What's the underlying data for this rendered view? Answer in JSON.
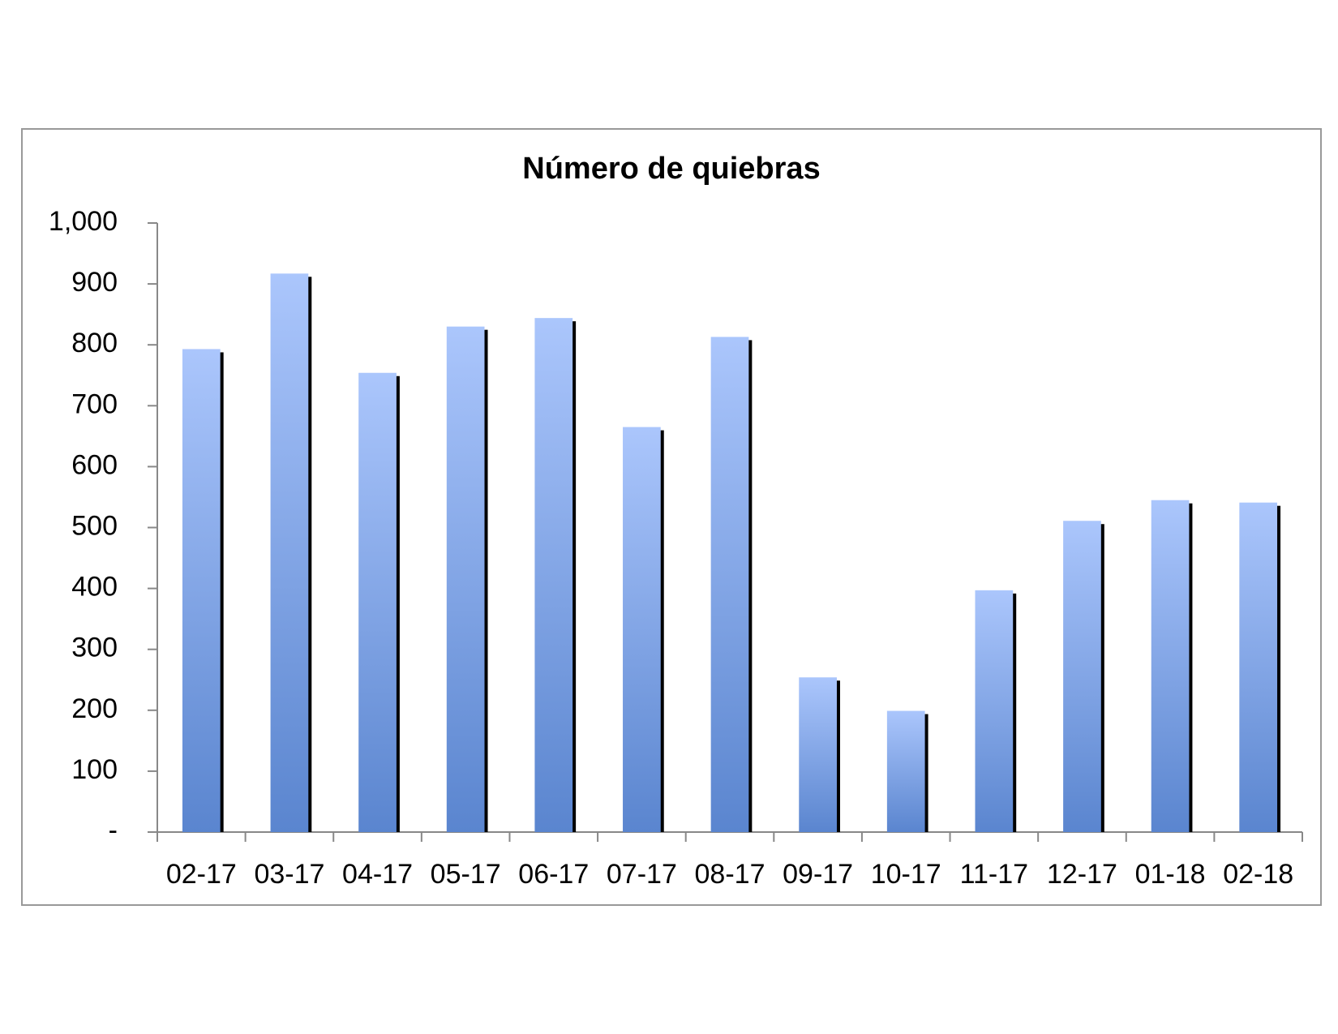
{
  "chart_data": {
    "type": "bar",
    "title": "Número de quiebras",
    "categories": [
      "02-17",
      "03-17",
      "04-17",
      "05-17",
      "06-17",
      "07-17",
      "08-17",
      "09-17",
      "10-17",
      "11-17",
      "12-17",
      "01-18",
      "02-18"
    ],
    "values": [
      793,
      917,
      754,
      830,
      844,
      665,
      813,
      254,
      199,
      397,
      511,
      545,
      541
    ],
    "color": "#5a85cf",
    "ylim": [
      0,
      1000
    ],
    "yticks": [
      {
        "value": 0,
        "label": "-"
      },
      100,
      200,
      300,
      400,
      500,
      600,
      700,
      800,
      900,
      {
        "value": 1000,
        "label": "1,000"
      }
    ],
    "grid": false
  }
}
